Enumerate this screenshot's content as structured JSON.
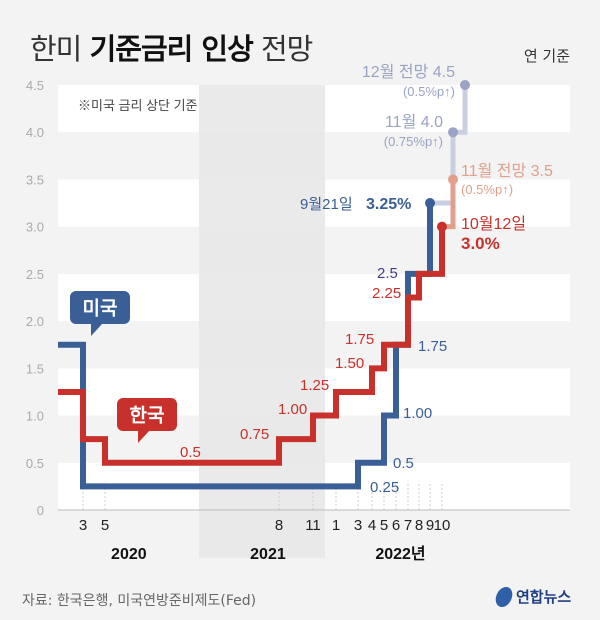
{
  "header": {
    "title_light_1": "한미",
    "title_bold": "기준금리 인상",
    "title_light_2": "전망",
    "unit": "연 기준"
  },
  "note": "※미국 금리 상단 기준",
  "footer": {
    "source": "자료: 한국은행, 미국연방준비제도(Fed)",
    "logo": "연합뉴스"
  },
  "colors": {
    "us": "#3a5f96",
    "korea": "#c8312b",
    "us_projection": "#c9cfe0",
    "us_projection_dot": "#9aa3c4",
    "korea_projection": "#e0a08c",
    "band_white": "#ffffff",
    "band_gray": "#f3f3f3",
    "shade_2021": "#e6e6e6"
  },
  "chart_data": {
    "type": "line",
    "subtype": "step",
    "title": "한미 기준금리 인상 전망",
    "ylabel": "연 기준 (%)",
    "ylim": [
      0,
      4.5
    ],
    "yticks": [
      "0",
      "0.5",
      "1.0",
      "1.5",
      "2.0",
      "2.5",
      "3.0",
      "3.5",
      "4.0",
      "4.5"
    ],
    "xticks": [
      {
        "label": "3",
        "t": 2020.17
      },
      {
        "label": "5",
        "t": 2020.33
      },
      {
        "label": "8",
        "t": 2021.58
      },
      {
        "label": "11",
        "t": 2021.83
      },
      {
        "label": "1",
        "t": 2022.0
      },
      {
        "label": "3",
        "t": 2022.17
      },
      {
        "label": "4",
        "t": 2022.25
      },
      {
        "label": "5",
        "t": 2022.33
      },
      {
        "label": "6",
        "t": 2022.42
      },
      {
        "label": "7",
        "t": 2022.5
      },
      {
        "label": "8",
        "t": 2022.58
      },
      {
        "label": "9",
        "t": 2022.67
      },
      {
        "label": "10",
        "t": 2022.75
      }
    ],
    "years": [
      {
        "label": "2020",
        "t": 2020.5
      },
      {
        "label": "2021",
        "t": 2021.5
      },
      {
        "label": "2022년",
        "t": 2022.45
      }
    ],
    "shaded_year": [
      2021.0,
      2021.92
    ],
    "series": [
      {
        "name": "미국",
        "points": [
          {
            "t": 2019.8,
            "v": 1.75
          },
          {
            "t": 2020.17,
            "v": 0.25,
            "label": "0.25"
          },
          {
            "t": 2022.17,
            "v": 0.5,
            "label": "0.5"
          },
          {
            "t": 2022.33,
            "v": 1.0,
            "label": "1.00"
          },
          {
            "t": 2022.42,
            "v": 1.75,
            "label": "1.75"
          },
          {
            "t": 2022.5,
            "v": 2.5,
            "label": "2.5"
          },
          {
            "t": 2022.67,
            "v": 3.25,
            "label": "9월21일 3.25%"
          }
        ],
        "projection": [
          {
            "t": 2022.83,
            "v": 4.0,
            "label": "11월 4.0",
            "sub": "(0.75%p↑)"
          },
          {
            "t": 2022.92,
            "v": 4.5,
            "label": "12월 전망 4.5",
            "sub": "(0.5%p↑)"
          }
        ]
      },
      {
        "name": "한국",
        "points": [
          {
            "t": 2019.8,
            "v": 1.25
          },
          {
            "t": 2020.17,
            "v": 0.75
          },
          {
            "t": 2020.33,
            "v": 0.5,
            "label": "0.5"
          },
          {
            "t": 2021.58,
            "v": 0.75,
            "label": "0.75"
          },
          {
            "t": 2021.83,
            "v": 1.0,
            "label": "1.00"
          },
          {
            "t": 2022.0,
            "v": 1.25,
            "label": "1.25"
          },
          {
            "t": 2022.25,
            "v": 1.5,
            "label": "1.50"
          },
          {
            "t": 2022.33,
            "v": 1.75,
            "label": "1.75"
          },
          {
            "t": 2022.5,
            "v": 2.25,
            "label": "2.25"
          },
          {
            "t": 2022.58,
            "v": 2.5
          },
          {
            "t": 2022.75,
            "v": 3.0,
            "label": "10월12일 3.0%"
          }
        ],
        "projection": [
          {
            "t": 2022.83,
            "v": 3.5,
            "label": "11월 전망 3.5",
            "sub": "(0.5%p↑)"
          }
        ]
      }
    ],
    "legend": [
      {
        "name": "미국",
        "placement": "left"
      },
      {
        "name": "한국",
        "placement": "left"
      }
    ]
  }
}
